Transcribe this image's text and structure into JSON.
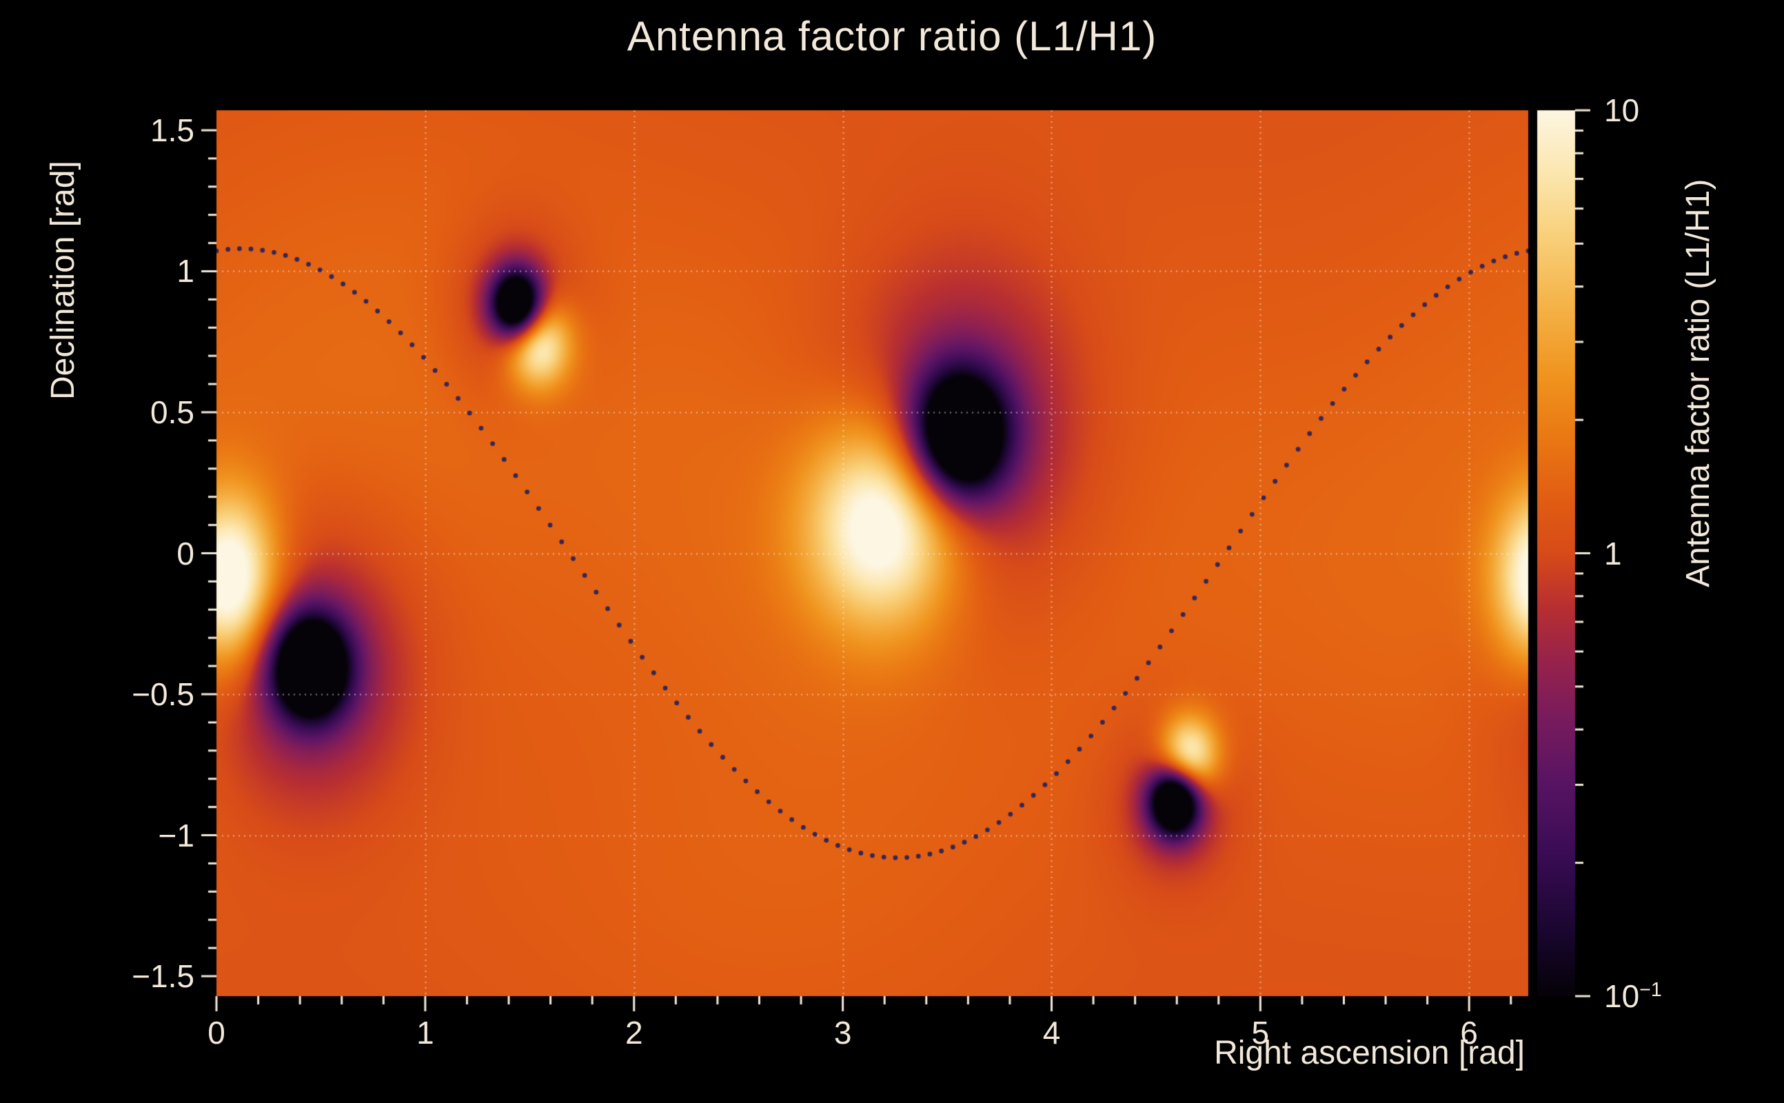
{
  "chart": {
    "title": "Antenna factor ratio (L1/H1)",
    "xlabel": "Right ascension [rad]",
    "ylabel": "Declination [rad]",
    "colorbar_label": "Antenna factor ratio (L1/H1)"
  },
  "colors": {
    "background": "#000000",
    "text": "#f2e9da",
    "grid": "rgba(255,255,255,0.5)",
    "curve_dots": "#20205e",
    "tick": "#f2e9da"
  },
  "chart_data": {
    "type": "heatmap",
    "title": "Antenna factor ratio (L1/H1)",
    "xlabel": "Right ascension [rad]",
    "ylabel": "Declination [rad]",
    "zlabel": "Antenna factor ratio (L1/H1)",
    "x_range": [
      0,
      6.2832
    ],
    "y_range": [
      -1.5708,
      1.5708
    ],
    "z_scale": "log10",
    "z_range": [
      0.1,
      10
    ],
    "x_ticks": {
      "values": [
        0,
        1,
        2,
        3,
        4,
        5,
        6
      ],
      "labels": [
        "0",
        "1",
        "2",
        "3",
        "4",
        "5",
        "6"
      ],
      "minor_step": 0.2
    },
    "y_ticks": {
      "values": [
        1.5,
        1,
        0.5,
        0,
        -0.5,
        -1,
        -1.5
      ],
      "labels": [
        "1.5",
        "1",
        "0.5",
        "0",
        "−0.5",
        "−1",
        "−1.5"
      ],
      "minor_step": 0.1
    },
    "colorbar_ticks": [
      {
        "value": 10,
        "label": "10",
        "exponent": ""
      },
      {
        "value": 1,
        "label": "1",
        "exponent": ""
      },
      {
        "value": 0.1,
        "label": "10",
        "exponent": "−1"
      }
    ],
    "grid": {
      "x_lines": [
        1,
        2,
        3,
        4,
        5,
        6
      ],
      "y_lines": [
        -1,
        -0.5,
        0,
        0.5,
        1
      ],
      "style": "dotted"
    },
    "background_ratio": 1.1,
    "bright_spots": [
      {
        "ra": 0.07,
        "dec": -0.1,
        "ratio": 10
      },
      {
        "ra": 1.54,
        "dec": 0.75,
        "ratio": 10
      },
      {
        "ra": 3.2,
        "dec": 0.11,
        "ratio": 10
      },
      {
        "ra": 4.66,
        "dec": -0.72,
        "ratio": 10
      }
    ],
    "dark_spots": [
      {
        "ra": 0.45,
        "dec": -0.41,
        "ratio": 0.1
      },
      {
        "ra": 1.44,
        "dec": 0.88,
        "ratio": 0.1
      },
      {
        "ra": 3.56,
        "dec": 0.42,
        "ratio": 0.1
      },
      {
        "ra": 4.59,
        "dec": -0.88,
        "ratio": 0.1
      }
    ],
    "dotted_curve": {
      "model": "dec = 1.08 · cos(ra − 0.12)",
      "amplitude": 1.08,
      "phase": 0.12,
      "points": 115
    },
    "field_model": {
      "background_log10": 0.05,
      "gaussians_log10": [
        {
          "kind": "broad",
          "ra": 3.25,
          "dec": 0.15,
          "amp": 0.16,
          "sra": 1.1,
          "sdec": 0.7
        },
        {
          "kind": "broad",
          "ra": 6.15,
          "dec": -0.1,
          "amp": 0.12,
          "sra": 1.0,
          "sdec": 0.7
        },
        {
          "kind": "broad",
          "ra": 0.9,
          "dec": 0.9,
          "amp": 0.09,
          "sra": 0.9,
          "sdec": 0.6
        },
        {
          "kind": "broad",
          "ra": 2.6,
          "dec": -1.25,
          "amp": 0.07,
          "sra": 1.0,
          "sdec": 0.5
        },
        {
          "kind": "peak",
          "ra": 0.07,
          "dec": -0.1,
          "amp": 1.15,
          "sra": 0.16,
          "sdec": 0.21
        },
        {
          "kind": "peak",
          "ra": 1.54,
          "dec": 0.745,
          "amp": 1.05,
          "sra": 0.11,
          "sdec": 0.11
        },
        {
          "kind": "peak",
          "ra": 3.2,
          "dec": 0.11,
          "amp": 1.18,
          "sra": 0.26,
          "sdec": 0.26
        },
        {
          "kind": "peak",
          "ra": 4.66,
          "dec": -0.72,
          "amp": 1.05,
          "sra": 0.1,
          "sdec": 0.1
        },
        {
          "kind": "null-core",
          "ra": 0.45,
          "dec": -0.405,
          "amp": -1.7,
          "sra": 0.13,
          "sdec": 0.13
        },
        {
          "kind": "null-halo",
          "ra": 0.45,
          "dec": -0.405,
          "amp": -0.5,
          "sra": 0.34,
          "sdec": 0.34
        },
        {
          "kind": "null-core",
          "ra": 1.44,
          "dec": 0.88,
          "amp": -1.7,
          "sra": 0.085,
          "sdec": 0.085
        },
        {
          "kind": "null-halo",
          "ra": 1.44,
          "dec": 0.88,
          "amp": -0.35,
          "sra": 0.2,
          "sdec": 0.2
        },
        {
          "kind": "null-core",
          "ra": 3.56,
          "dec": 0.42,
          "amp": -1.7,
          "sra": 0.16,
          "sdec": 0.16
        },
        {
          "kind": "null-halo",
          "ra": 3.56,
          "dec": 0.42,
          "amp": -0.55,
          "sra": 0.42,
          "sdec": 0.42
        },
        {
          "kind": "null-core",
          "ra": 4.59,
          "dec": -0.88,
          "amp": -1.7,
          "sra": 0.085,
          "sdec": 0.085
        },
        {
          "kind": "null-halo",
          "ra": 4.59,
          "dec": -0.88,
          "amp": -0.3,
          "sra": 0.2,
          "sdec": 0.2
        }
      ]
    },
    "colormap": [
      [
        0.0,
        "#050208"
      ],
      [
        0.08,
        "#1c0733"
      ],
      [
        0.16,
        "#3a0c55"
      ],
      [
        0.24,
        "#581463"
      ],
      [
        0.31,
        "#771b5e"
      ],
      [
        0.38,
        "#98234b"
      ],
      [
        0.44,
        "#b92f31"
      ],
      [
        0.5,
        "#d74b19"
      ],
      [
        0.56,
        "#e25d13"
      ],
      [
        0.63,
        "#ea7813"
      ],
      [
        0.7,
        "#f0941f"
      ],
      [
        0.78,
        "#f5b348"
      ],
      [
        0.86,
        "#f9d17c"
      ],
      [
        0.93,
        "#fce7b0"
      ],
      [
        1.0,
        "#fdf6e2"
      ]
    ]
  }
}
